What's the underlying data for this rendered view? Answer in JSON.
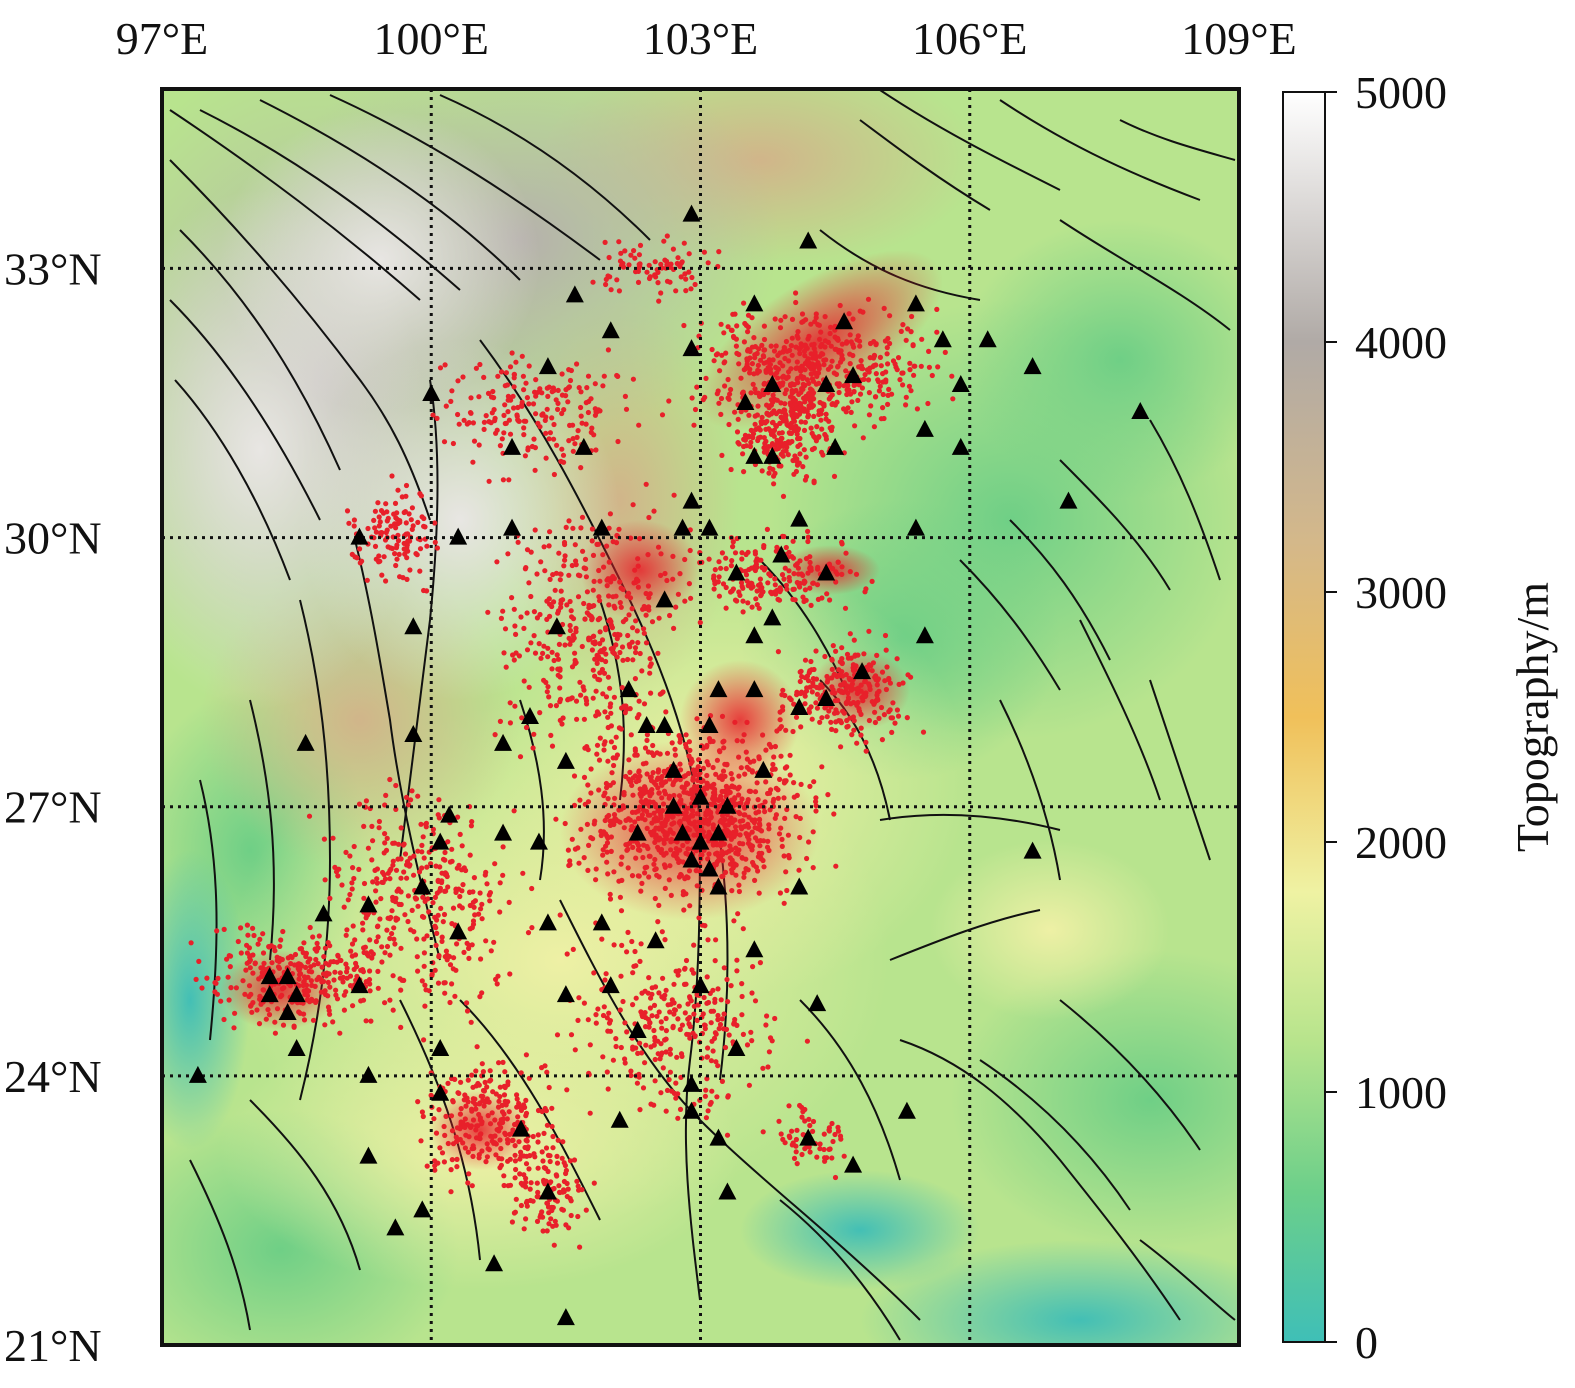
{
  "map": {
    "lon_range": [
      97,
      109
    ],
    "lat_range": [
      21,
      35
    ],
    "lon_ticks": [
      {
        "value": 97,
        "label": "97°E"
      },
      {
        "value": 100,
        "label": "100°E"
      },
      {
        "value": 103,
        "label": "103°E"
      },
      {
        "value": 106,
        "label": "106°E"
      },
      {
        "value": 109,
        "label": "109°E"
      }
    ],
    "lat_ticks": [
      {
        "value": 21,
        "label": "21°N"
      },
      {
        "value": 24,
        "label": "24°N"
      },
      {
        "value": 27,
        "label": "27°N"
      },
      {
        "value": 30,
        "label": "30°N"
      },
      {
        "value": 33,
        "label": "33°N"
      }
    ],
    "gridlines": "dotted",
    "colors": {
      "earthquakes": "#e8202a",
      "stations": "#000000",
      "faults": "#111111"
    }
  },
  "colorbar": {
    "title": "Topography/m",
    "ticks": [
      {
        "value": 0,
        "label": "0"
      },
      {
        "value": 1000,
        "label": "1000"
      },
      {
        "value": 2000,
        "label": "2000"
      },
      {
        "value": 3000,
        "label": "3000"
      },
      {
        "value": 4000,
        "label": "4000"
      },
      {
        "value": 5000,
        "label": "5000"
      }
    ],
    "range": [
      0,
      5000
    ],
    "stops": [
      {
        "value": 0,
        "color": "#3fbfb7"
      },
      {
        "value": 600,
        "color": "#6ccf8a"
      },
      {
        "value": 1200,
        "color": "#b7e48c"
      },
      {
        "value": 1800,
        "color": "#eff2a3"
      },
      {
        "value": 2500,
        "color": "#f0c05a"
      },
      {
        "value": 3200,
        "color": "#d4b88a"
      },
      {
        "value": 4000,
        "color": "#b0aaa6"
      },
      {
        "value": 5000,
        "color": "#ffffff"
      }
    ]
  },
  "stations": [
    [
      102.9,
      33.6
    ],
    [
      104.2,
      33.3
    ],
    [
      101.6,
      32.7
    ],
    [
      103.6,
      32.6
    ],
    [
      104.6,
      32.4
    ],
    [
      105.4,
      32.6
    ],
    [
      102.0,
      32.3
    ],
    [
      105.7,
      32.2
    ],
    [
      106.2,
      32.2
    ],
    [
      106.7,
      31.9
    ],
    [
      102.9,
      32.1
    ],
    [
      101.3,
      31.9
    ],
    [
      104.4,
      31.7
    ],
    [
      104.7,
      31.8
    ],
    [
      103.8,
      31.7
    ],
    [
      105.9,
      31.7
    ],
    [
      103.5,
      31.5
    ],
    [
      100.0,
      31.6
    ],
    [
      105.5,
      31.2
    ],
    [
      105.9,
      31.0
    ],
    [
      104.5,
      31.0
    ],
    [
      107.9,
      31.4
    ],
    [
      100.9,
      31.0
    ],
    [
      101.7,
      31.0
    ],
    [
      103.6,
      30.9
    ],
    [
      103.8,
      30.9
    ],
    [
      102.9,
      30.4
    ],
    [
      104.1,
      30.2
    ],
    [
      100.9,
      30.1
    ],
    [
      101.9,
      30.1
    ],
    [
      102.8,
      30.1
    ],
    [
      103.1,
      30.1
    ],
    [
      105.4,
      30.1
    ],
    [
      107.1,
      30.4
    ],
    [
      99.2,
      30.0
    ],
    [
      100.3,
      30.0
    ],
    [
      103.9,
      29.8
    ],
    [
      103.4,
      29.6
    ],
    [
      104.4,
      29.6
    ],
    [
      102.6,
      29.3
    ],
    [
      101.4,
      29.0
    ],
    [
      103.8,
      29.1
    ],
    [
      99.8,
      29.0
    ],
    [
      103.6,
      28.9
    ],
    [
      105.5,
      28.9
    ],
    [
      104.8,
      28.5
    ],
    [
      102.2,
      28.3
    ],
    [
      103.2,
      28.3
    ],
    [
      103.6,
      28.3
    ],
    [
      104.1,
      28.1
    ],
    [
      104.4,
      28.2
    ],
    [
      101.1,
      28.0
    ],
    [
      102.4,
      27.9
    ],
    [
      102.6,
      27.9
    ],
    [
      103.1,
      27.9
    ],
    [
      98.6,
      27.7
    ],
    [
      99.8,
      27.8
    ],
    [
      100.8,
      27.7
    ],
    [
      101.5,
      27.5
    ],
    [
      102.7,
      27.4
    ],
    [
      103.7,
      27.4
    ],
    [
      102.7,
      27.0
    ],
    [
      103.0,
      27.1
    ],
    [
      103.3,
      27.0
    ],
    [
      102.8,
      26.7
    ],
    [
      103.0,
      26.6
    ],
    [
      103.2,
      26.7
    ],
    [
      102.9,
      26.4
    ],
    [
      103.1,
      26.3
    ],
    [
      103.2,
      26.1
    ],
    [
      100.2,
      26.9
    ],
    [
      100.8,
      26.7
    ],
    [
      101.2,
      26.6
    ],
    [
      102.3,
      26.7
    ],
    [
      100.1,
      26.6
    ],
    [
      106.7,
      26.5
    ],
    [
      104.1,
      26.1
    ],
    [
      99.9,
      26.1
    ],
    [
      98.8,
      25.8
    ],
    [
      99.3,
      25.9
    ],
    [
      101.3,
      25.7
    ],
    [
      101.9,
      25.7
    ],
    [
      100.3,
      25.6
    ],
    [
      102.5,
      25.5
    ],
    [
      103.6,
      25.4
    ],
    [
      98.2,
      25.1
    ],
    [
      98.4,
      25.1
    ],
    [
      98.2,
      24.9
    ],
    [
      98.5,
      24.9
    ],
    [
      98.4,
      24.7
    ],
    [
      99.2,
      25.0
    ],
    [
      101.5,
      24.9
    ],
    [
      102.0,
      25.0
    ],
    [
      103.0,
      25.0
    ],
    [
      104.3,
      24.8
    ],
    [
      102.3,
      24.5
    ],
    [
      98.5,
      24.3
    ],
    [
      100.1,
      24.3
    ],
    [
      103.4,
      24.3
    ],
    [
      97.4,
      24.0
    ],
    [
      99.3,
      24.0
    ],
    [
      102.9,
      23.9
    ],
    [
      100.1,
      23.8
    ],
    [
      101.0,
      23.4
    ],
    [
      102.1,
      23.5
    ],
    [
      102.9,
      23.6
    ],
    [
      105.3,
      23.6
    ],
    [
      104.2,
      23.3
    ],
    [
      103.2,
      23.3
    ],
    [
      99.3,
      23.1
    ],
    [
      104.7,
      23.0
    ],
    [
      101.3,
      22.7
    ],
    [
      103.3,
      22.7
    ],
    [
      99.9,
      22.5
    ],
    [
      99.6,
      22.3
    ],
    [
      100.7,
      21.9
    ],
    [
      101.5,
      21.3
    ]
  ]
}
